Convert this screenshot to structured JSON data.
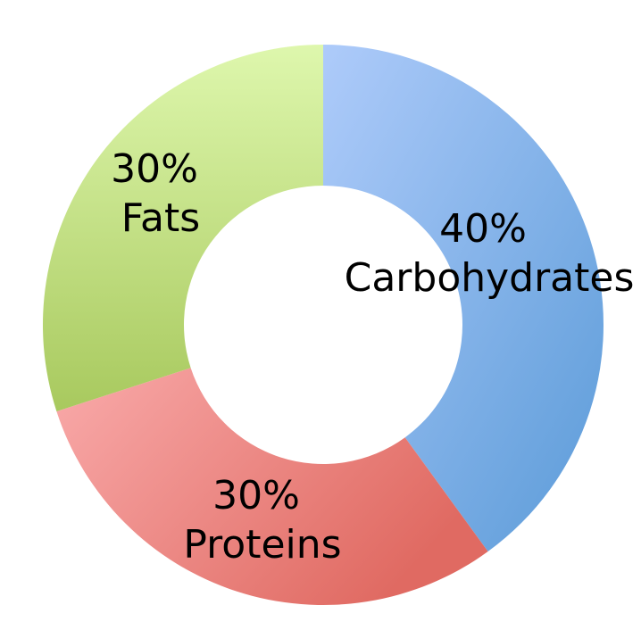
{
  "chart_data": {
    "type": "pie",
    "donut": true,
    "legend": "none",
    "slices": [
      {
        "name": "Carbohydrates",
        "value": 40,
        "percent_label": "40%",
        "color_light": "#aecbfa",
        "color_dark": "#5b9bd8"
      },
      {
        "name": "Proteins",
        "value": 30,
        "percent_label": "30%",
        "color_light": "#f9aaaa",
        "color_dark": "#e06a62"
      },
      {
        "name": "Fats",
        "value": 30,
        "percent_label": "30%",
        "color_light": "#def7ad",
        "color_dark": "#a8c95e"
      }
    ]
  }
}
